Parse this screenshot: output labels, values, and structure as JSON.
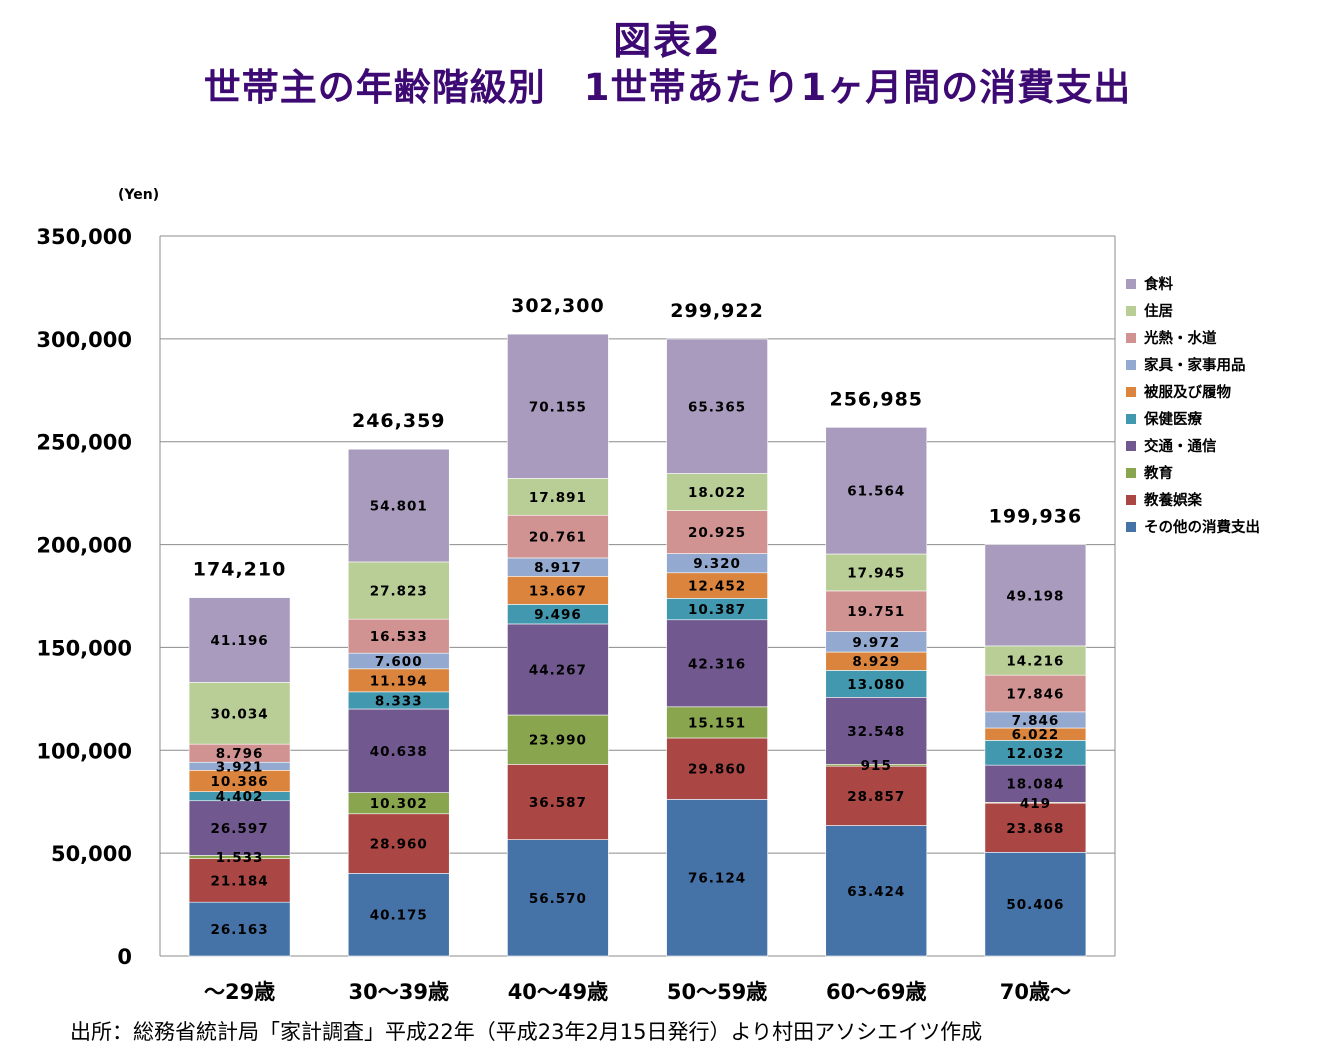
{
  "title": {
    "line1": "図表2",
    "line2": "世帯主の年齢階級別　1世帯あたり1ヶ月間の消費支出"
  },
  "source": "出所：総務省統計局「家計調査」平成22年（平成23年2月15日発行）より村田アソシエイツ作成",
  "chart_data": {
    "type": "bar",
    "stacked": true,
    "ylabel": "(Yen)",
    "ylim": [
      0,
      350000
    ],
    "yticks": [
      0,
      50000,
      100000,
      150000,
      200000,
      250000,
      300000,
      350000
    ],
    "ytick_labels": [
      "0",
      "50,000",
      "100,000",
      "150,000",
      "200,000",
      "250,000",
      "300,000",
      "350,000"
    ],
    "categories": [
      "～29歳",
      "30～39歳",
      "40～49歳",
      "50～59歳",
      "60～69歳",
      "70歳～"
    ],
    "totals": [
      174210,
      246359,
      302300,
      299922,
      256985,
      199936
    ],
    "total_labels": [
      "174,210",
      "246,359",
      "302,300",
      "299,922",
      "256,985",
      "199,936"
    ],
    "legend_position": "right",
    "grid": true,
    "series": [
      {
        "name": "その他の消費支出",
        "color": "#4572a7",
        "values": [
          26163,
          40175,
          56570,
          76124,
          63424,
          50406
        ],
        "labels": [
          "26.163",
          "40.175",
          "56.570",
          "76.124",
          "63.424",
          "50.406"
        ]
      },
      {
        "name": "教養娯楽",
        "color": "#aa4643",
        "values": [
          21184,
          28960,
          36587,
          29860,
          28857,
          23868
        ],
        "labels": [
          "21.184",
          "28.960",
          "36.587",
          "29.860",
          "28.857",
          "23.868"
        ]
      },
      {
        "name": "教育",
        "color": "#89a54e",
        "values": [
          1533,
          10302,
          23990,
          15151,
          915,
          419
        ],
        "labels": [
          "1.533",
          "10.302",
          "23.990",
          "15.151",
          "915",
          "419"
        ]
      },
      {
        "name": "交通・通信",
        "color": "#71588f",
        "values": [
          26597,
          40638,
          44267,
          42316,
          32548,
          18084
        ],
        "labels": [
          "26.597",
          "40.638",
          "44.267",
          "42.316",
          "32.548",
          "18.084"
        ]
      },
      {
        "name": "保健医療",
        "color": "#4198af",
        "values": [
          4402,
          8333,
          9496,
          10387,
          13080,
          12032
        ],
        "labels": [
          "4.402",
          "8.333",
          "9.496",
          "10.387",
          "13.080",
          "12.032"
        ]
      },
      {
        "name": "被服及び履物",
        "color": "#db843d",
        "values": [
          10386,
          11194,
          13667,
          12452,
          8929,
          6022
        ],
        "labels": [
          "10.386",
          "11.194",
          "13.667",
          "12.452",
          "8.929",
          "6.022"
        ]
      },
      {
        "name": "家具・家事用品",
        "color": "#93a9cf",
        "values": [
          3921,
          7600,
          8917,
          9320,
          9972,
          7846
        ],
        "labels": [
          "3.921",
          "7.600",
          "8.917",
          "9.320",
          "9.972",
          "7.846"
        ]
      },
      {
        "name": "光熱・水道",
        "color": "#d19392",
        "values": [
          8796,
          16533,
          20761,
          20925,
          19751,
          17846
        ],
        "labels": [
          "8.796",
          "16.533",
          "20.761",
          "20.925",
          "19.751",
          "17.846"
        ]
      },
      {
        "name": "住居",
        "color": "#b9cd96",
        "values": [
          30034,
          27823,
          17891,
          18022,
          17945,
          14216
        ],
        "labels": [
          "30.034",
          "27.823",
          "17.891",
          "18.022",
          "17.945",
          "14.216"
        ]
      },
      {
        "name": "食料",
        "color": "#a99bbd",
        "values": [
          41196,
          54801,
          70155,
          65365,
          61564,
          49198
        ],
        "labels": [
          "41.196",
          "54.801",
          "70.155",
          "65.365",
          "61.564",
          "49.198"
        ]
      }
    ]
  }
}
